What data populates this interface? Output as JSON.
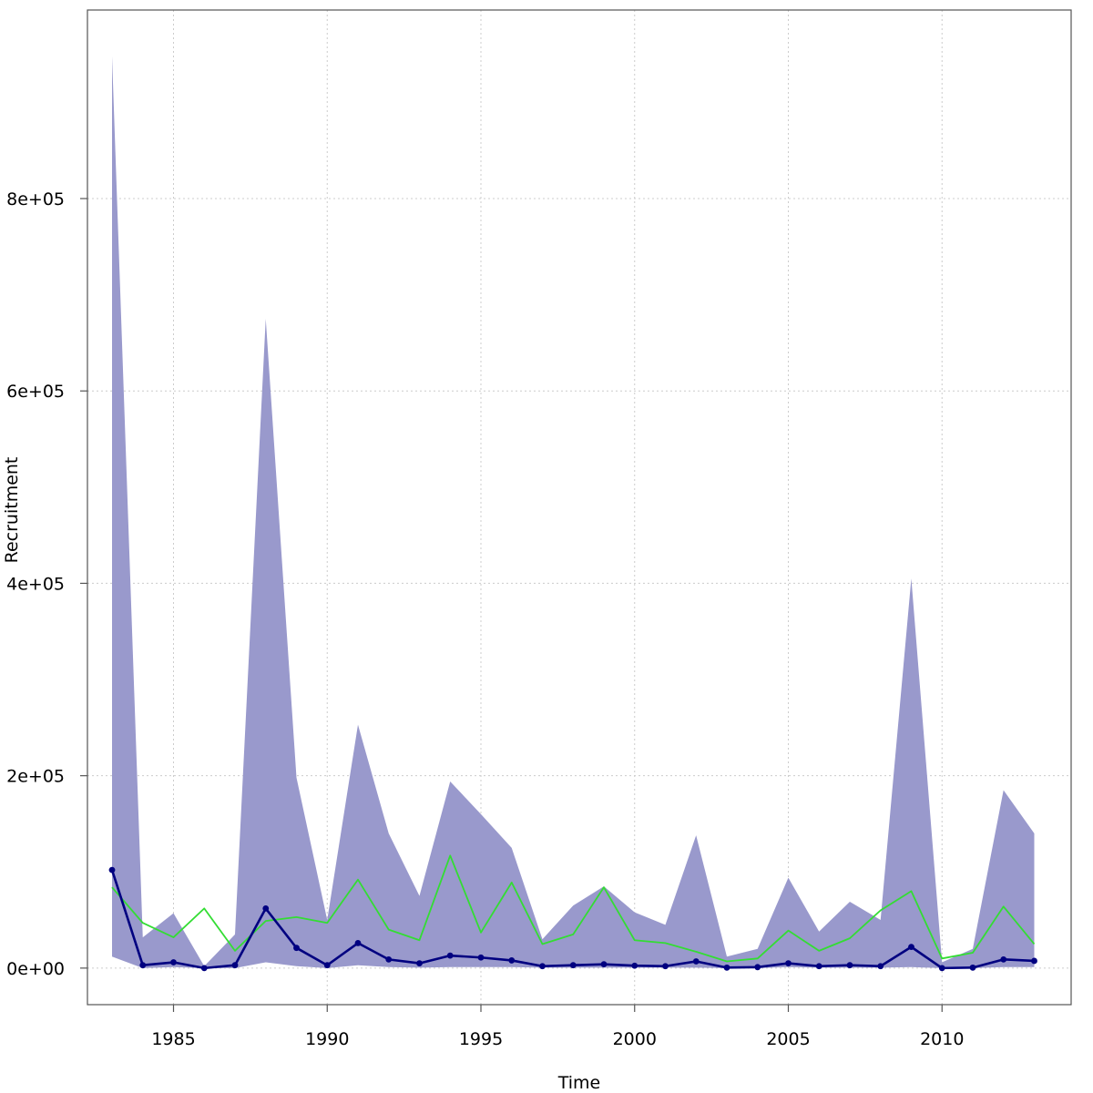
{
  "chart_data": {
    "type": "line",
    "title": "",
    "xlabel": "Time",
    "ylabel": "Recruitment",
    "xlim": [
      1982.2,
      2014.2
    ],
    "ylim": [
      -38000,
      996000
    ],
    "grid": true,
    "x_ticks": [
      {
        "value": 1985,
        "label": "1985"
      },
      {
        "value": 1990,
        "label": "1990"
      },
      {
        "value": 1995,
        "label": "1995"
      },
      {
        "value": 2000,
        "label": "2000"
      },
      {
        "value": 2005,
        "label": "2005"
      },
      {
        "value": 2010,
        "label": "2010"
      }
    ],
    "y_ticks": [
      {
        "value": 0,
        "label": "0e+00"
      },
      {
        "value": 200000,
        "label": "2e+05"
      },
      {
        "value": 400000,
        "label": "4e+05"
      },
      {
        "value": 600000,
        "label": "6e+05"
      },
      {
        "value": 800000,
        "label": "8e+05"
      }
    ],
    "x": [
      1983,
      1984,
      1985,
      1986,
      1987,
      1988,
      1989,
      1990,
      1991,
      1992,
      1993,
      1994,
      1995,
      1996,
      1997,
      1998,
      1999,
      2000,
      2001,
      2002,
      2003,
      2004,
      2005,
      2006,
      2007,
      2008,
      2009,
      2010,
      2011,
      2012,
      2013
    ],
    "band": {
      "color": "#9999cc",
      "upper": [
        948000,
        32000,
        57000,
        2000,
        35000,
        675000,
        198000,
        50000,
        253000,
        140000,
        75000,
        194000,
        160000,
        125000,
        30000,
        65000,
        85000,
        58000,
        45000,
        138000,
        12000,
        20000,
        94000,
        38000,
        69000,
        50000,
        405000,
        6000,
        20000,
        185000,
        140000
      ],
      "lower": [
        12000,
        0,
        1000,
        0,
        0,
        6000,
        2000,
        0,
        3000,
        1000,
        500,
        1000,
        1000,
        1000,
        500,
        500,
        500,
        500,
        500,
        500,
        0,
        0,
        1000,
        500,
        500,
        500,
        1000,
        0,
        0,
        1000,
        1000
      ]
    },
    "series": [
      {
        "color": "#33dd33",
        "markers": false,
        "values": [
          84000,
          47000,
          32000,
          62000,
          18000,
          49000,
          53000,
          47000,
          92000,
          40000,
          29000,
          117000,
          37000,
          89000,
          25000,
          35000,
          84000,
          29000,
          26000,
          17000,
          7000,
          10000,
          39000,
          18000,
          31000,
          60000,
          80000,
          10000,
          16000,
          64000,
          25000
        ]
      },
      {
        "color": "#000080",
        "markers": true,
        "values": [
          102000,
          3000,
          6000,
          0,
          3000,
          62000,
          21000,
          3000,
          26000,
          9000,
          5000,
          13000,
          11000,
          8000,
          2000,
          3000,
          4000,
          2500,
          2000,
          7000,
          500,
          1000,
          5000,
          2000,
          3000,
          2000,
          22000,
          0,
          500,
          9000,
          7500
        ]
      }
    ]
  }
}
